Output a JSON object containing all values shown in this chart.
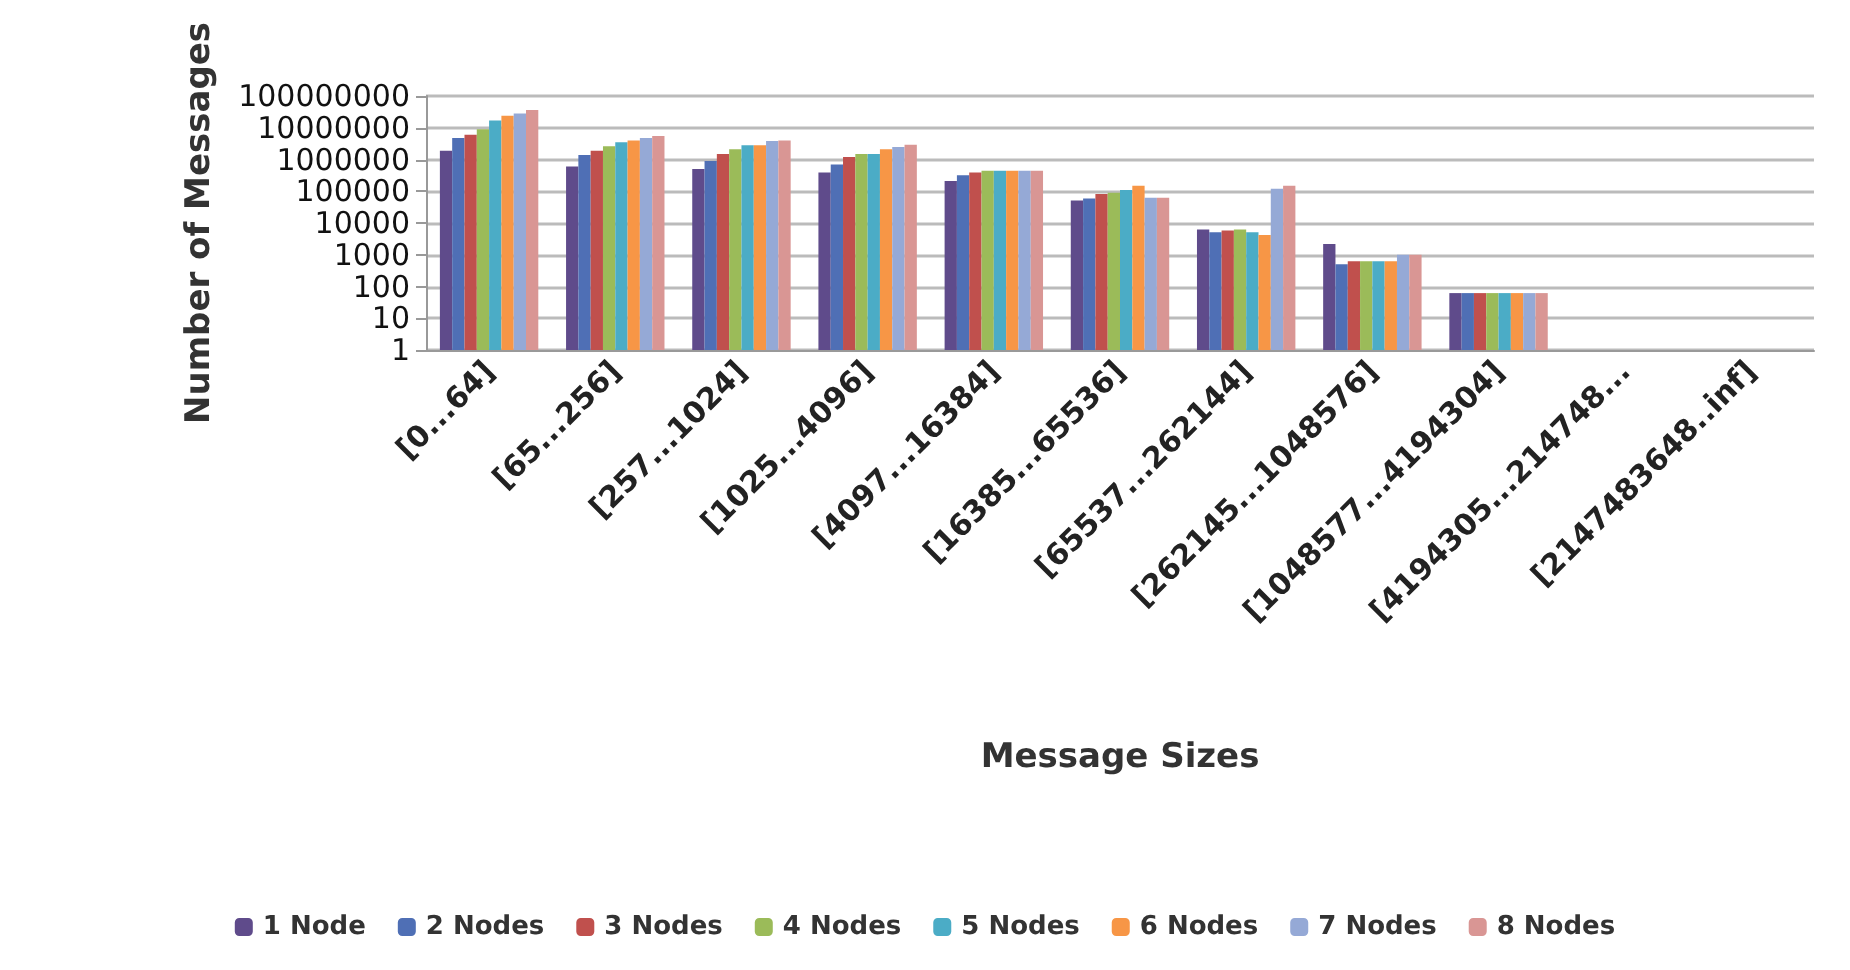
{
  "chart_data": {
    "type": "bar",
    "xlabel": "Message Sizes",
    "ylabel": "Number of Messages",
    "categories": [
      "[0...64]",
      "[65...256]",
      "[257...1024]",
      "[1025...4096]",
      "[4097...16384]",
      "[16385...65536]",
      "[65537...262144]",
      "[262145...1048576]",
      "[1048577...4194304]",
      "[4194305...214748...",
      "[2147483648..inf]"
    ],
    "series": [
      {
        "name": "1 Node",
        "color": "#5f4b8b",
        "values": [
          1900000,
          600000,
          500000,
          390000,
          210000,
          51000,
          6300,
          2200,
          62,
          null,
          null
        ]
      },
      {
        "name": "2 Nodes",
        "color": "#4f6fb5",
        "values": [
          4800000,
          1400000,
          900000,
          700000,
          320000,
          59000,
          5100,
          500,
          62,
          null,
          null
        ]
      },
      {
        "name": "3 Nodes",
        "color": "#c0504d",
        "values": [
          6000000,
          1900000,
          1500000,
          1200000,
          390000,
          82000,
          5800,
          620,
          62,
          null,
          null
        ]
      },
      {
        "name": "4 Nodes",
        "color": "#9bbb59",
        "values": [
          9000000,
          2600000,
          2100000,
          1500000,
          440000,
          89000,
          6300,
          620,
          62,
          null,
          null
        ]
      },
      {
        "name": "5 Nodes",
        "color": "#4bacc6",
        "values": [
          17000000,
          3500000,
          2800000,
          1500000,
          440000,
          110000,
          5100,
          620,
          62,
          null,
          null
        ]
      },
      {
        "name": "6 Nodes",
        "color": "#f79646",
        "values": [
          24000000,
          4000000,
          2800000,
          2100000,
          440000,
          150000,
          4200,
          620,
          62,
          null,
          null
        ]
      },
      {
        "name": "7 Nodes",
        "color": "#95a9d6",
        "values": [
          28000000,
          4800000,
          3800000,
          2500000,
          440000,
          63000,
          120000,
          1000,
          62,
          null,
          null
        ]
      },
      {
        "name": "8 Nodes",
        "color": "#d99694",
        "values": [
          36000000,
          5500000,
          4000000,
          2900000,
          440000,
          63000,
          150000,
          1000,
          62,
          null,
          null
        ]
      }
    ],
    "log": true,
    "ylim": [
      1,
      100000000
    ],
    "yticks": [
      1,
      10,
      100,
      1000,
      10000,
      100000,
      1000000,
      10000000,
      100000000
    ],
    "grid": "y",
    "legend": "bottom"
  }
}
